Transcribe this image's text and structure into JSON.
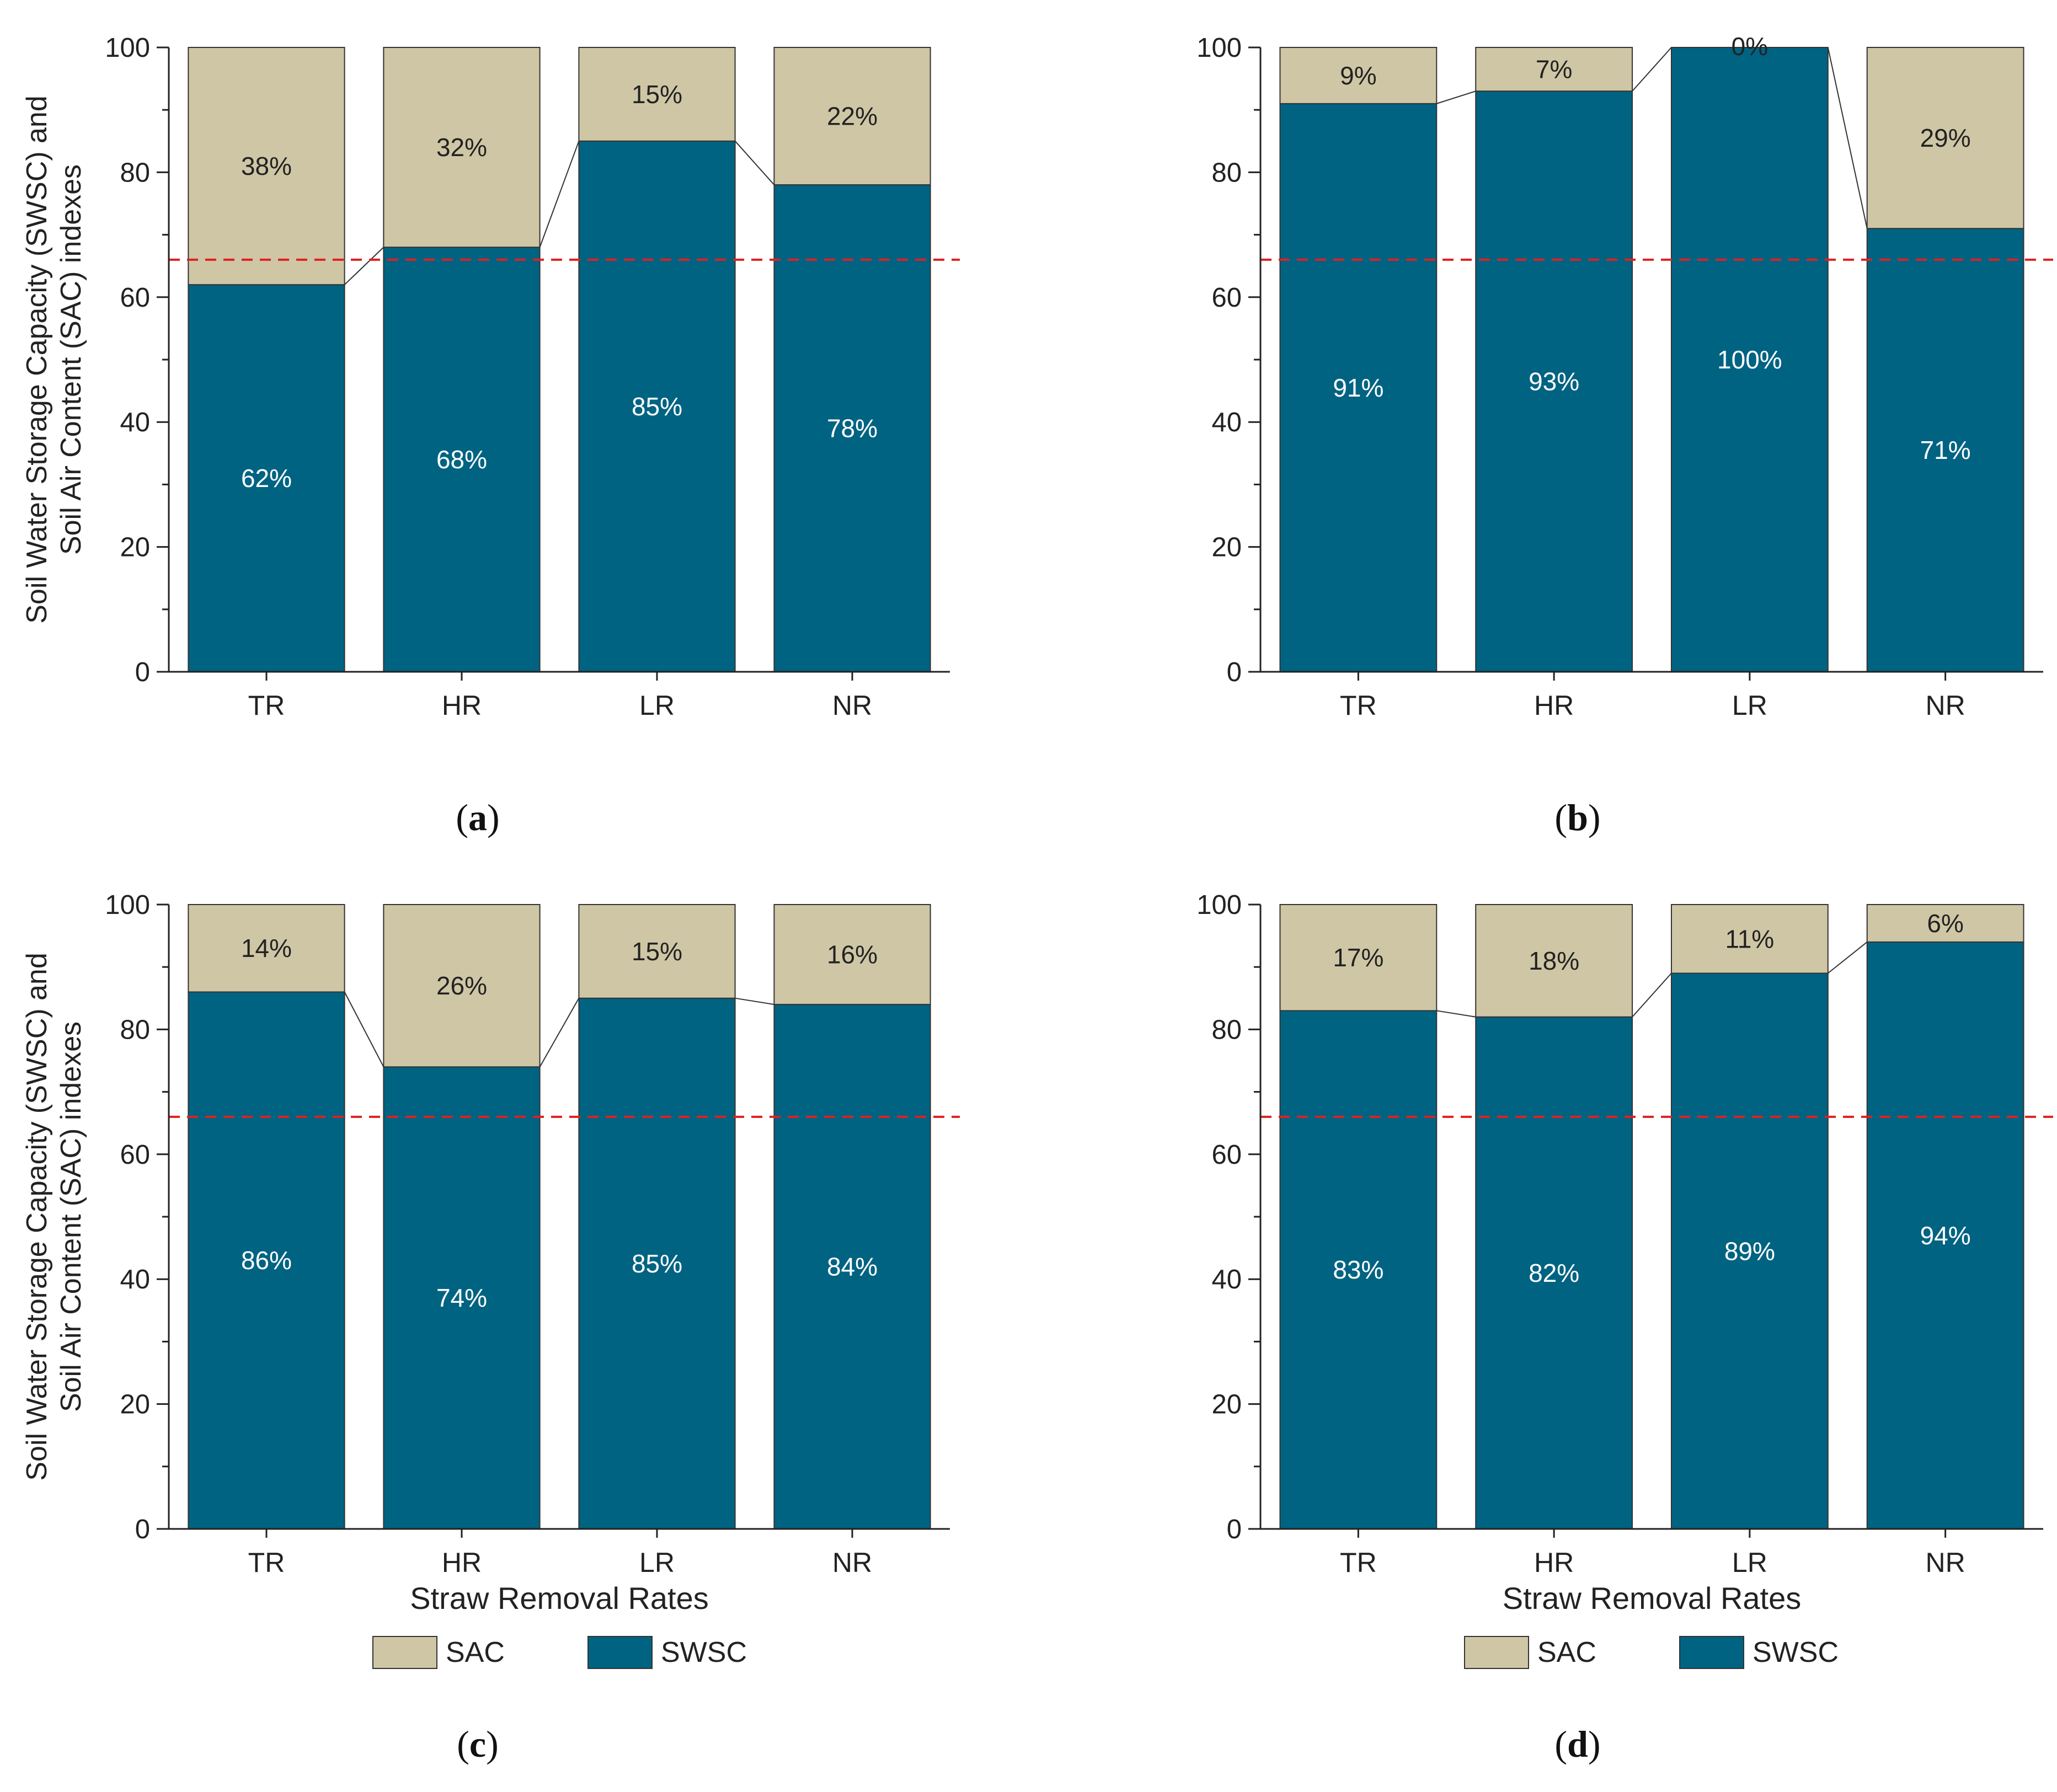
{
  "colors": {
    "SAC": "#cfc6a5",
    "SWSC": "#006382",
    "threshold": "#e02020",
    "axis": "#222222",
    "connector": "#333333"
  },
  "legend": [
    {
      "label": "SAC",
      "color": "#cfc6a5"
    },
    {
      "label": "SWSC",
      "color": "#006382"
    }
  ],
  "chart_data": [
    {
      "panel": "(a)",
      "type": "bar",
      "stacked": true,
      "categories": [
        "TR",
        "HR",
        "LR",
        "NR"
      ],
      "series": [
        {
          "name": "SWSC",
          "values": [
            62,
            68,
            85,
            78
          ]
        },
        {
          "name": "SAC",
          "values": [
            38,
            32,
            15,
            22
          ]
        }
      ],
      "labels": {
        "SWSC": [
          "62%",
          "68%",
          "85%",
          "78%"
        ],
        "SAC": [
          "38%",
          "32%",
          "15%",
          "22%"
        ]
      },
      "ylabel": "Soil Water Storage Capacity (SWSC) and\nSoil Air Content (SAC) indexes",
      "xlabel": "",
      "ylim": [
        0,
        100
      ],
      "yticks": [
        0,
        20,
        40,
        60,
        80,
        100
      ],
      "threshold": 66,
      "legend": false
    },
    {
      "panel": "(b)",
      "type": "bar",
      "stacked": true,
      "categories": [
        "TR",
        "HR",
        "LR",
        "NR"
      ],
      "series": [
        {
          "name": "SWSC",
          "values": [
            91,
            93,
            100,
            71
          ]
        },
        {
          "name": "SAC",
          "values": [
            9,
            7,
            0,
            29
          ]
        }
      ],
      "labels": {
        "SWSC": [
          "91%",
          "93%",
          "100%",
          "71%"
        ],
        "SAC": [
          "9%",
          "7%",
          "0%",
          "29%"
        ]
      },
      "ylabel": "",
      "xlabel": "",
      "ylim": [
        0,
        100
      ],
      "yticks": [
        0,
        20,
        40,
        60,
        80,
        100
      ],
      "threshold": 66,
      "legend": false
    },
    {
      "panel": "(c)",
      "type": "bar",
      "stacked": true,
      "categories": [
        "TR",
        "HR",
        "LR",
        "NR"
      ],
      "series": [
        {
          "name": "SWSC",
          "values": [
            86,
            74,
            85,
            84
          ]
        },
        {
          "name": "SAC",
          "values": [
            14,
            26,
            15,
            16
          ]
        }
      ],
      "labels": {
        "SWSC": [
          "86%",
          "74%",
          "85%",
          "84%"
        ],
        "SAC": [
          "14%",
          "26%",
          "15%",
          "16%"
        ]
      },
      "ylabel": "Soil Water Storage Capacity (SWSC) and\nSoil Air Content (SAC) indexes",
      "xlabel": "Straw Removal Rates",
      "ylim": [
        0,
        100
      ],
      "yticks": [
        0,
        20,
        40,
        60,
        80,
        100
      ],
      "threshold": 66,
      "legend": true
    },
    {
      "panel": "(d)",
      "type": "bar",
      "stacked": true,
      "categories": [
        "TR",
        "HR",
        "LR",
        "NR"
      ],
      "series": [
        {
          "name": "SWSC",
          "values": [
            83,
            82,
            89,
            94
          ]
        },
        {
          "name": "SAC",
          "values": [
            17,
            18,
            11,
            6
          ]
        }
      ],
      "labels": {
        "SWSC": [
          "83%",
          "82%",
          "89%",
          "94%"
        ],
        "SAC": [
          "17%",
          "18%",
          "11%",
          "6%"
        ]
      },
      "ylabel": "",
      "xlabel": "Straw Removal Rates",
      "ylim": [
        0,
        100
      ],
      "yticks": [
        0,
        20,
        40,
        60,
        80,
        100
      ],
      "threshold": 66,
      "legend": true
    }
  ]
}
